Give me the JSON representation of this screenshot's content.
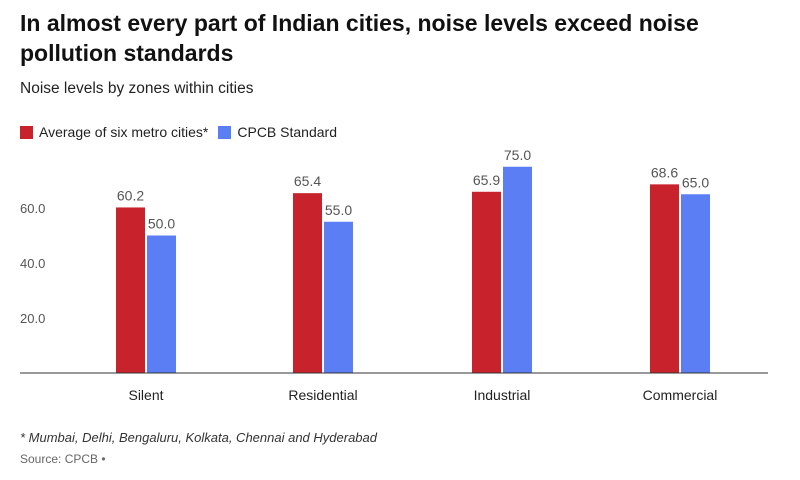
{
  "title": "In almost every part of Indian cities, noise levels exceed noise pollution standards",
  "subtitle": "Noise levels by zones within cities",
  "footnote": "* Mumbai, Delhi, Bengaluru, Kolkata, Chennai and Hyderabad",
  "source": "Source: CPCB •",
  "colors": {
    "series_average": "#c8232c",
    "series_standard": "#5b7ef5",
    "axis": "#333333",
    "tick_text": "#555555",
    "label_text": "#555555"
  },
  "chart_data": {
    "type": "bar",
    "title": "In almost every part of Indian cities, noise levels exceed noise pollution standards",
    "subtitle": "Noise levels by zones within cities",
    "xlabel": "",
    "ylabel": "",
    "categories": [
      "Silent",
      "Residential",
      "Industrial",
      "Commercial"
    ],
    "series": [
      {
        "name": "Average of six metro cities*",
        "values": [
          60.2,
          65.4,
          65.9,
          68.6
        ],
        "labels": [
          "60.2",
          "65.4",
          "65.9",
          "68.6"
        ]
      },
      {
        "name": "CPCB Standard",
        "values": [
          50.0,
          55.0,
          75.0,
          65.0
        ],
        "labels": [
          "50.0",
          "55.0",
          "75.0",
          "65.0"
        ]
      }
    ],
    "yticks": [
      20,
      40,
      60
    ],
    "ytick_labels": [
      "20.0",
      "40.0",
      "60.0"
    ],
    "ylim": [
      0,
      80
    ],
    "grid": false,
    "legend_position": "top-left"
  }
}
